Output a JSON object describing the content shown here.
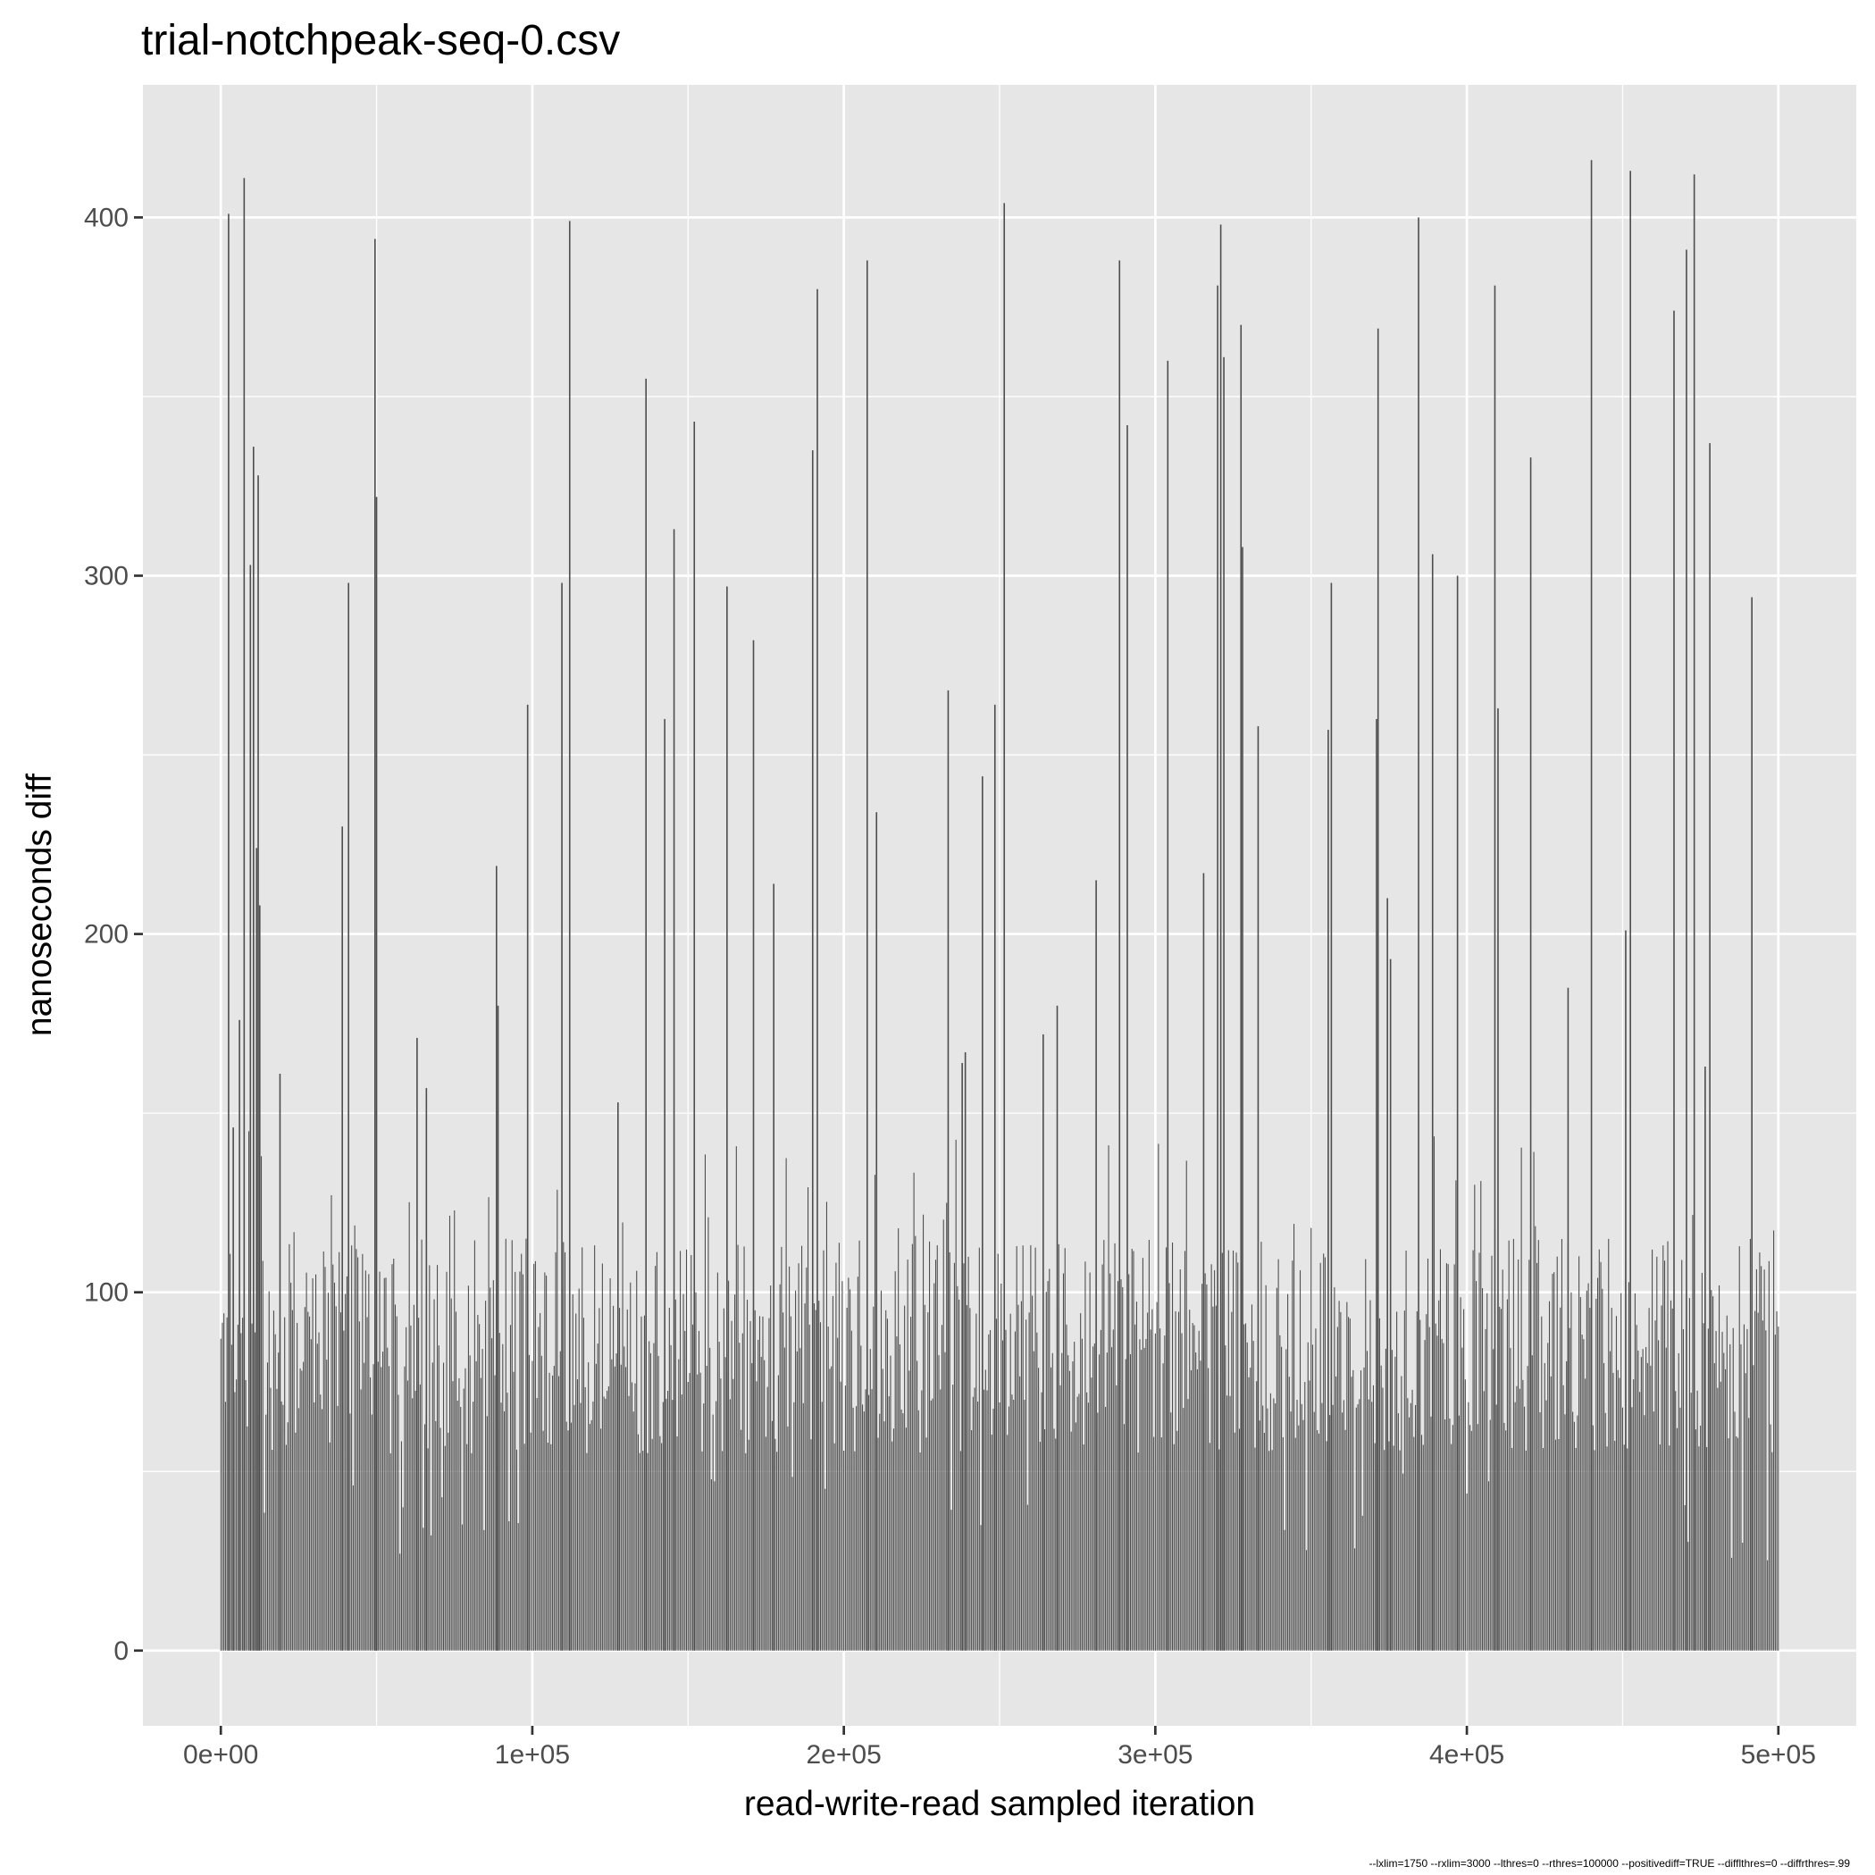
{
  "chart_data": {
    "type": "bar",
    "title": "trial-notchpeak-seq-0.csv",
    "xlabel": "read-write-read sampled iteration",
    "ylabel": "nanoseconds diff",
    "caption": "--lxlim=1750 --rxlim=3000 --lthres=0 --rthres=100000 --positivediff=TRUE --difflthres=0 --diffrthres=.99",
    "xlim": [
      -25000,
      525000
    ],
    "ylim": [
      -21,
      437
    ],
    "x_ticks": [
      {
        "value": 0,
        "label": "0e+00"
      },
      {
        "value": 100000,
        "label": "1e+05"
      },
      {
        "value": 200000,
        "label": "2e+05"
      },
      {
        "value": 300000,
        "label": "3e+05"
      },
      {
        "value": 400000,
        "label": "4e+05"
      },
      {
        "value": 500000,
        "label": "5e+05"
      }
    ],
    "y_ticks": [
      {
        "value": 0,
        "label": "0"
      },
      {
        "value": 100,
        "label": "100"
      },
      {
        "value": 200,
        "label": "200"
      },
      {
        "value": 300,
        "label": "300"
      },
      {
        "value": 400,
        "label": "400"
      }
    ],
    "grid": true,
    "bar_color": "#4d4d4d",
    "panel_color": "#e6e6e6",
    "grid_color": "#ffffff",
    "baseline_range": [
      55,
      115
    ],
    "peaks": [
      {
        "x": 2500,
        "y": 401
      },
      {
        "x": 4000,
        "y": 146
      },
      {
        "x": 6000,
        "y": 176
      },
      {
        "x": 7500,
        "y": 411
      },
      {
        "x": 9500,
        "y": 303
      },
      {
        "x": 10500,
        "y": 336
      },
      {
        "x": 11500,
        "y": 224
      },
      {
        "x": 12000,
        "y": 328
      },
      {
        "x": 12500,
        "y": 208
      },
      {
        "x": 19000,
        "y": 161
      },
      {
        "x": 39000,
        "y": 230
      },
      {
        "x": 41000,
        "y": 298
      },
      {
        "x": 49500,
        "y": 394
      },
      {
        "x": 50000,
        "y": 322
      },
      {
        "x": 63000,
        "y": 171
      },
      {
        "x": 66000,
        "y": 157
      },
      {
        "x": 88500,
        "y": 219
      },
      {
        "x": 89000,
        "y": 180
      },
      {
        "x": 98500,
        "y": 264
      },
      {
        "x": 109500,
        "y": 298
      },
      {
        "x": 112000,
        "y": 399
      },
      {
        "x": 127500,
        "y": 153
      },
      {
        "x": 136500,
        "y": 355
      },
      {
        "x": 142500,
        "y": 260
      },
      {
        "x": 145500,
        "y": 313
      },
      {
        "x": 152000,
        "y": 343
      },
      {
        "x": 162500,
        "y": 297
      },
      {
        "x": 171000,
        "y": 282
      },
      {
        "x": 177500,
        "y": 214
      },
      {
        "x": 190000,
        "y": 335
      },
      {
        "x": 191500,
        "y": 380
      },
      {
        "x": 207500,
        "y": 388
      },
      {
        "x": 210500,
        "y": 234
      },
      {
        "x": 233500,
        "y": 268
      },
      {
        "x": 238000,
        "y": 164
      },
      {
        "x": 239000,
        "y": 167
      },
      {
        "x": 244500,
        "y": 244
      },
      {
        "x": 248500,
        "y": 264
      },
      {
        "x": 251500,
        "y": 404
      },
      {
        "x": 264000,
        "y": 172
      },
      {
        "x": 268500,
        "y": 180
      },
      {
        "x": 281000,
        "y": 215
      },
      {
        "x": 288500,
        "y": 388
      },
      {
        "x": 291000,
        "y": 342
      },
      {
        "x": 304000,
        "y": 360
      },
      {
        "x": 315500,
        "y": 217
      },
      {
        "x": 320000,
        "y": 381
      },
      {
        "x": 321000,
        "y": 398
      },
      {
        "x": 322000,
        "y": 361
      },
      {
        "x": 327500,
        "y": 370
      },
      {
        "x": 328000,
        "y": 308
      },
      {
        "x": 333000,
        "y": 258
      },
      {
        "x": 355500,
        "y": 257
      },
      {
        "x": 356500,
        "y": 298
      },
      {
        "x": 371000,
        "y": 260
      },
      {
        "x": 371500,
        "y": 369
      },
      {
        "x": 374500,
        "y": 210
      },
      {
        "x": 375500,
        "y": 193
      },
      {
        "x": 384500,
        "y": 400
      },
      {
        "x": 389000,
        "y": 306
      },
      {
        "x": 397000,
        "y": 300
      },
      {
        "x": 409000,
        "y": 381
      },
      {
        "x": 410000,
        "y": 263
      },
      {
        "x": 420500,
        "y": 333
      },
      {
        "x": 432500,
        "y": 185
      },
      {
        "x": 440000,
        "y": 416
      },
      {
        "x": 451000,
        "y": 201
      },
      {
        "x": 452500,
        "y": 413
      },
      {
        "x": 466500,
        "y": 374
      },
      {
        "x": 470500,
        "y": 391
      },
      {
        "x": 473000,
        "y": 412
      },
      {
        "x": 476500,
        "y": 163
      },
      {
        "x": 478000,
        "y": 337
      },
      {
        "x": 491500,
        "y": 294
      }
    ]
  }
}
